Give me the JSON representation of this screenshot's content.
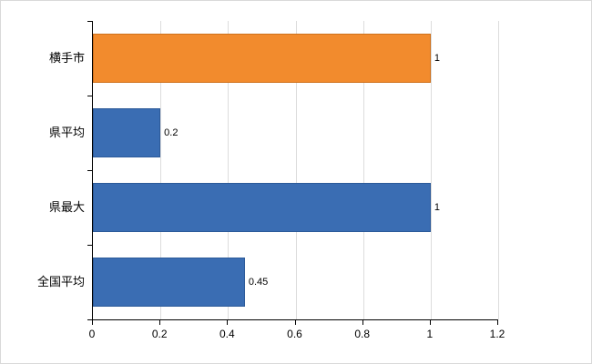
{
  "chart_data": {
    "type": "bar",
    "orientation": "horizontal",
    "title": "",
    "categories": [
      "横手市",
      "県平均",
      "県最大",
      "全国平均"
    ],
    "values": [
      1,
      0.2,
      1,
      0.45
    ],
    "value_labels": [
      "1",
      "0.2",
      "1",
      "0.45"
    ],
    "bar_colors": [
      "#f28b2d",
      "#3a6db3",
      "#3a6db3",
      "#3a6db3"
    ],
    "bar_border_colors": [
      "#cf711c",
      "#2c5a99",
      "#2c5a99",
      "#2c5a99"
    ],
    "xlim": [
      0,
      1.2
    ],
    "xticks": [
      0,
      0.2,
      0.4,
      0.6,
      0.8,
      1,
      1.2
    ],
    "xtick_labels": [
      "0",
      "0.2",
      "0.4",
      "0.6",
      "0.8",
      "1",
      "1.2"
    ],
    "grid": true,
    "legend": "none",
    "colors": {
      "grid": "#dcdcdc",
      "axis": "#000000",
      "text": "#000000",
      "background": "#ffffff"
    }
  }
}
